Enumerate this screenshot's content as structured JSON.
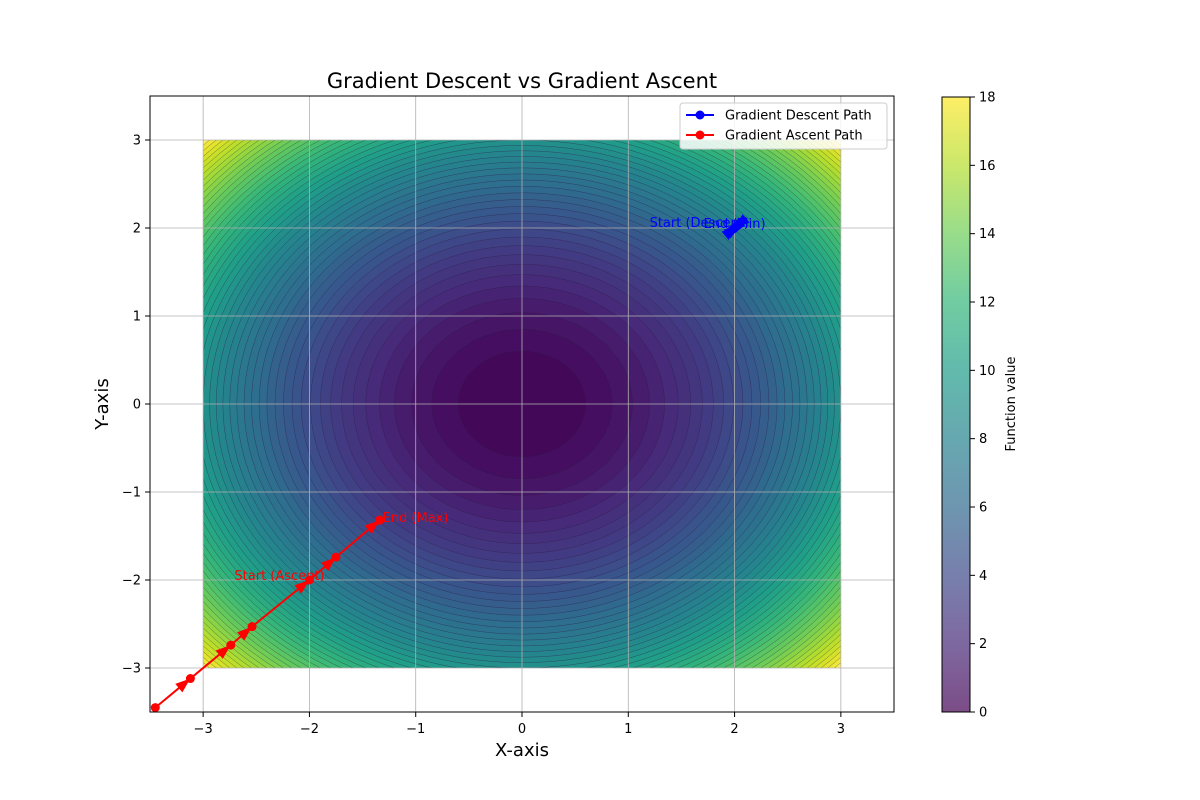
{
  "chart_data": {
    "type": "contour",
    "title": "Gradient Descent vs Gradient Ascent",
    "xlabel": "X-axis",
    "ylabel": "Y-axis",
    "xlim": [
      -3.5,
      3.5
    ],
    "ylim": [
      -3.5,
      3.5
    ],
    "xticks": [
      -3,
      -2,
      -1,
      0,
      1,
      2,
      3
    ],
    "yticks": [
      -3,
      -2,
      -1,
      0,
      1,
      2,
      3
    ],
    "xtick_labels": [
      "−3",
      "−2",
      "−1",
      "0",
      "1",
      "2",
      "3"
    ],
    "ytick_labels": [
      "−3",
      "−2",
      "−1",
      "0",
      "1",
      "2",
      "3"
    ],
    "grid": true,
    "surface": {
      "function": "x^2 + y^2",
      "x_range": [
        -3,
        3
      ],
      "y_range": [
        -3,
        3
      ],
      "levels": 50,
      "colormap": "viridis",
      "alpha": 0.7
    },
    "colorbar": {
      "label": "Function value",
      "range": [
        0,
        18
      ],
      "ticks": [
        0,
        2,
        4,
        6,
        8,
        10,
        12,
        14,
        16,
        18
      ]
    },
    "legend": {
      "position": "top-right",
      "entries": [
        {
          "label": "Gradient Descent Path",
          "color": "#0000ff"
        },
        {
          "label": "Gradient Ascent Path",
          "color": "#ff0000"
        }
      ]
    },
    "series": [
      {
        "name": "Gradient Descent Path",
        "color": "#0000ff",
        "x": [
          2.0,
          2.04,
          1.96,
          2.02,
          1.99
        ],
        "y": [
          2.0,
          2.04,
          1.96,
          2.02,
          1.99
        ]
      },
      {
        "name": "Gradient Ascent Path",
        "color": "#ff0000",
        "x": [
          -1.34,
          -1.75,
          -2.0,
          -2.54,
          -2.74,
          -3.12,
          -3.45
        ],
        "y": [
          -1.32,
          -1.74,
          -2.0,
          -2.53,
          -2.74,
          -3.12,
          -3.45
        ]
      }
    ],
    "annotations": [
      {
        "text": "Start (Descent)",
        "x": 2.0,
        "y": 2.0,
        "color": "#0000ff"
      },
      {
        "text": "End (Min)",
        "x": 1.99,
        "y": 1.99,
        "color": "#0000ff"
      },
      {
        "text": "Start (Ascent)",
        "x": -2.0,
        "y": -2.0,
        "color": "#ff0000"
      },
      {
        "text": "End (Max)",
        "x": -1.34,
        "y": -1.32,
        "color": "#ff0000"
      }
    ]
  }
}
